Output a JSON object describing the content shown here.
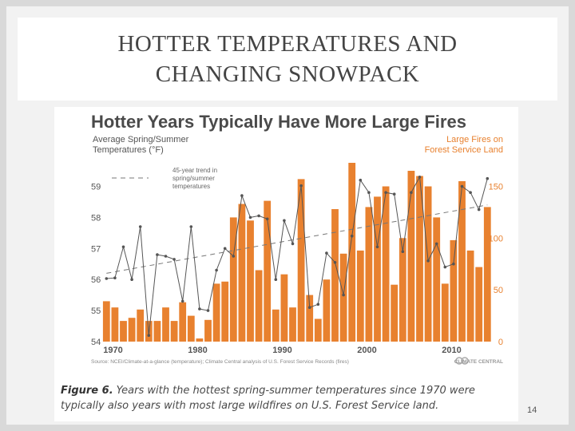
{
  "slide": {
    "title_line1": "HOTTER TEMPERATURES AND",
    "title_line2": "CHANGING SNOWPACK",
    "page_number": "14"
  },
  "figure": {
    "caption_label": "Figure 6.",
    "caption_text": "Years with the hottest spring-summer temperatures since 1970 were typically also years with most large wildfires on U.S. Forest Service land."
  },
  "colors": {
    "bars": "#e8812f",
    "temperature_line": "#555555",
    "trend_line": "#777777",
    "left_axis_label": "#555555",
    "right_axis_label": "#e8812f"
  },
  "chart_data": {
    "type": "bar",
    "title": "Hotter Years Typically Have More Large Fires",
    "left_axis_label_line1": "Average Spring/Summer",
    "left_axis_label_line2": "Temperatures (°F)",
    "right_axis_label_line1": "Large Fires on",
    "right_axis_label_line2": "Forest Service Land",
    "trend_label_line1": "45-year trend in",
    "trend_label_line2": "spring/summer",
    "trend_label_line3": "temperatures",
    "source": "Source: NCEI/Climate-at-a-glance (temperature); Climate Central analysis of U.S. Forest Service Records (fires)",
    "brand": "CLIMATE CENTRAL",
    "x": [
      1970,
      1971,
      1972,
      1973,
      1974,
      1975,
      1976,
      1977,
      1978,
      1979,
      1980,
      1981,
      1982,
      1983,
      1984,
      1985,
      1986,
      1987,
      1988,
      1989,
      1990,
      1991,
      1992,
      1993,
      1994,
      1995,
      1996,
      1997,
      1998,
      1999,
      2000,
      2001,
      2002,
      2003,
      2004,
      2005,
      2006,
      2007,
      2008,
      2009,
      2010,
      2011,
      2012,
      2013,
      2014,
      2015
    ],
    "x_ticks": [
      1970,
      1980,
      1990,
      2000,
      2010
    ],
    "x_tick_labels": [
      "1970",
      "1980",
      "1990",
      "2000",
      "2010"
    ],
    "fires_axis": {
      "ylim": [
        0,
        165
      ],
      "ticks": [
        0,
        50,
        100,
        150
      ],
      "tick_labels": [
        "0",
        "50",
        "100",
        "150"
      ]
    },
    "temp_axis": {
      "ylim": [
        54,
        59.5
      ],
      "ticks": [
        54,
        55,
        56,
        57,
        58,
        59
      ],
      "tick_labels": [
        "54",
        "55",
        "56",
        "57",
        "58",
        "59"
      ]
    },
    "series": [
      {
        "kind": "bar",
        "axis": "right",
        "values": [
          39,
          33,
          20,
          23,
          31,
          20,
          20,
          33,
          20,
          38,
          25,
          3,
          21,
          56,
          58,
          120,
          133,
          117,
          69,
          136,
          31,
          65,
          33,
          157,
          45,
          22,
          60,
          128,
          85,
          190,
          88,
          130,
          140,
          150,
          55,
          100,
          165,
          160,
          150,
          120,
          56,
          98,
          155,
          88,
          72,
          130
        ]
      },
      {
        "kind": "line",
        "axis": "left",
        "values": [
          56.03,
          56.05,
          57.05,
          56.0,
          57.7,
          54.2,
          56.8,
          56.75,
          56.65,
          55.3,
          57.7,
          55.05,
          55.0,
          56.3,
          57.0,
          56.75,
          58.7,
          58.0,
          58.05,
          57.95,
          56.0,
          57.9,
          57.15,
          59.02,
          55.1,
          55.2,
          56.85,
          56.55,
          55.5,
          57.4,
          59.2,
          58.8,
          57.05,
          58.8,
          58.75,
          56.9,
          58.8,
          59.3,
          56.6,
          57.15,
          56.4,
          56.5,
          59.0,
          58.8,
          58.25,
          59.25
        ]
      },
      {
        "kind": "trend",
        "axis": "left",
        "start": [
          1970,
          56.2
        ],
        "end": [
          2015,
          58.4
        ]
      }
    ]
  }
}
